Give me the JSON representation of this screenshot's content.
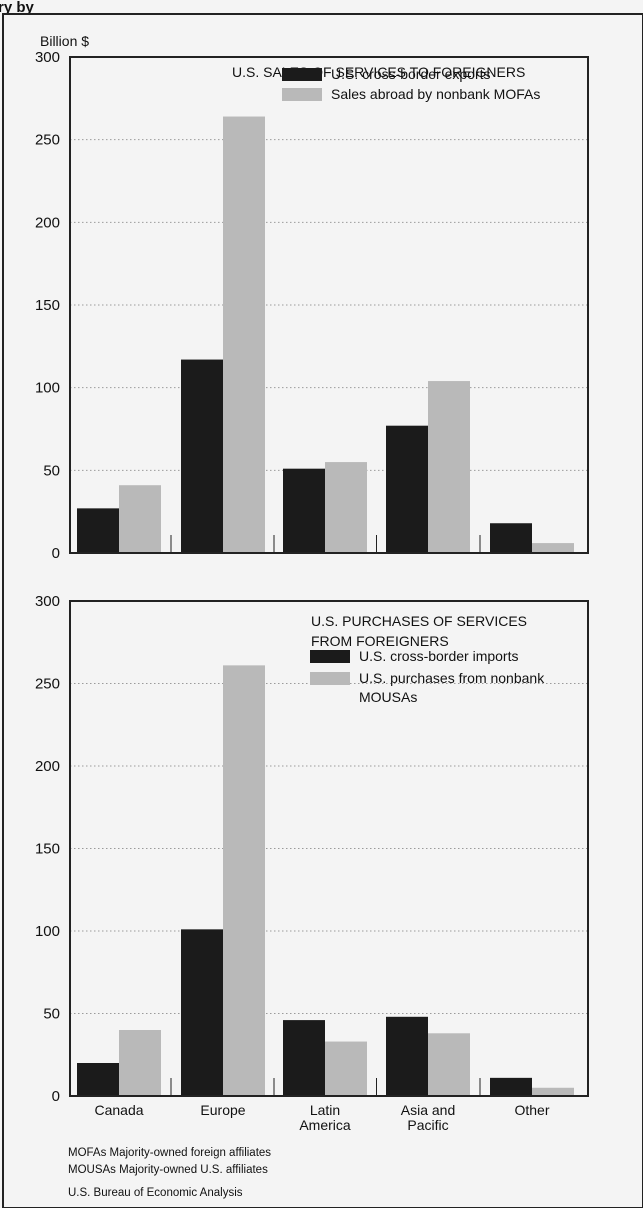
{
  "header": {
    "fragment": "ry by"
  },
  "colors": {
    "dark": "#1b1b1b",
    "light": "#b9b9b9",
    "frame": "#222222",
    "grid": "#9a9a9a"
  },
  "chart_data": [
    {
      "type": "bar",
      "title": "U.S. SALES OF SERVICES TO FOREIGNERS",
      "title_lines": [
        "U.S. SALES OF SERVICES TO FOREIGNERS"
      ],
      "ylabel": "Billion $",
      "ylim": [
        0,
        300
      ],
      "yticks": [
        "0",
        "50",
        "100",
        "150",
        "200",
        "250",
        "300"
      ],
      "categories": [
        "Canada",
        "Europe",
        "Latin America",
        "Asia and Pacific",
        "Other"
      ],
      "series": [
        {
          "name": "U.S. cross-border exports",
          "name_lines": [
            "U.S. cross-border exports"
          ],
          "values": [
            27,
            117,
            51,
            77,
            18
          ]
        },
        {
          "name": "Sales abroad by nonbank MOFAs",
          "name_lines": [
            "Sales abroad by nonbank MOFAs"
          ],
          "values": [
            41,
            264,
            55,
            104,
            6
          ]
        }
      ],
      "grid": true,
      "legend": "top-right"
    },
    {
      "type": "bar",
      "title": "U.S. PURCHASES OF SERVICES FROM FOREIGNERS",
      "title_lines": [
        "U.S. PURCHASES OF SERVICES",
        "FROM FOREIGNERS"
      ],
      "ylabel": "",
      "ylim": [
        0,
        300
      ],
      "yticks": [
        "0",
        "50",
        "100",
        "150",
        "200",
        "250",
        "300"
      ],
      "categories": [
        "Canada",
        "Europe",
        "Latin America",
        "Asia and Pacific",
        "Other"
      ],
      "category_lines": [
        [
          "Canada"
        ],
        [
          "Europe"
        ],
        [
          "Latin",
          "America"
        ],
        [
          "Asia and",
          "Pacific"
        ],
        [
          "Other"
        ]
      ],
      "series": [
        {
          "name": "U.S. cross-border imports",
          "name_lines": [
            "U.S. cross-border imports"
          ],
          "values": [
            20,
            101,
            46,
            48,
            11
          ]
        },
        {
          "name": "U.S. purchases from nonbank MOUSAs",
          "name_lines": [
            "U.S. purchases from nonbank",
            "MOUSAs"
          ],
          "values": [
            40,
            261,
            33,
            38,
            5
          ]
        }
      ],
      "grid": true,
      "legend": "top-right"
    }
  ],
  "notes": {
    "mofa": "MOFAs  Majority-owned foreign affiliates",
    "mousa": "MOUSAs  Majority-owned U.S. affiliates",
    "source": "U.S. Bureau of Economic Analysis"
  }
}
